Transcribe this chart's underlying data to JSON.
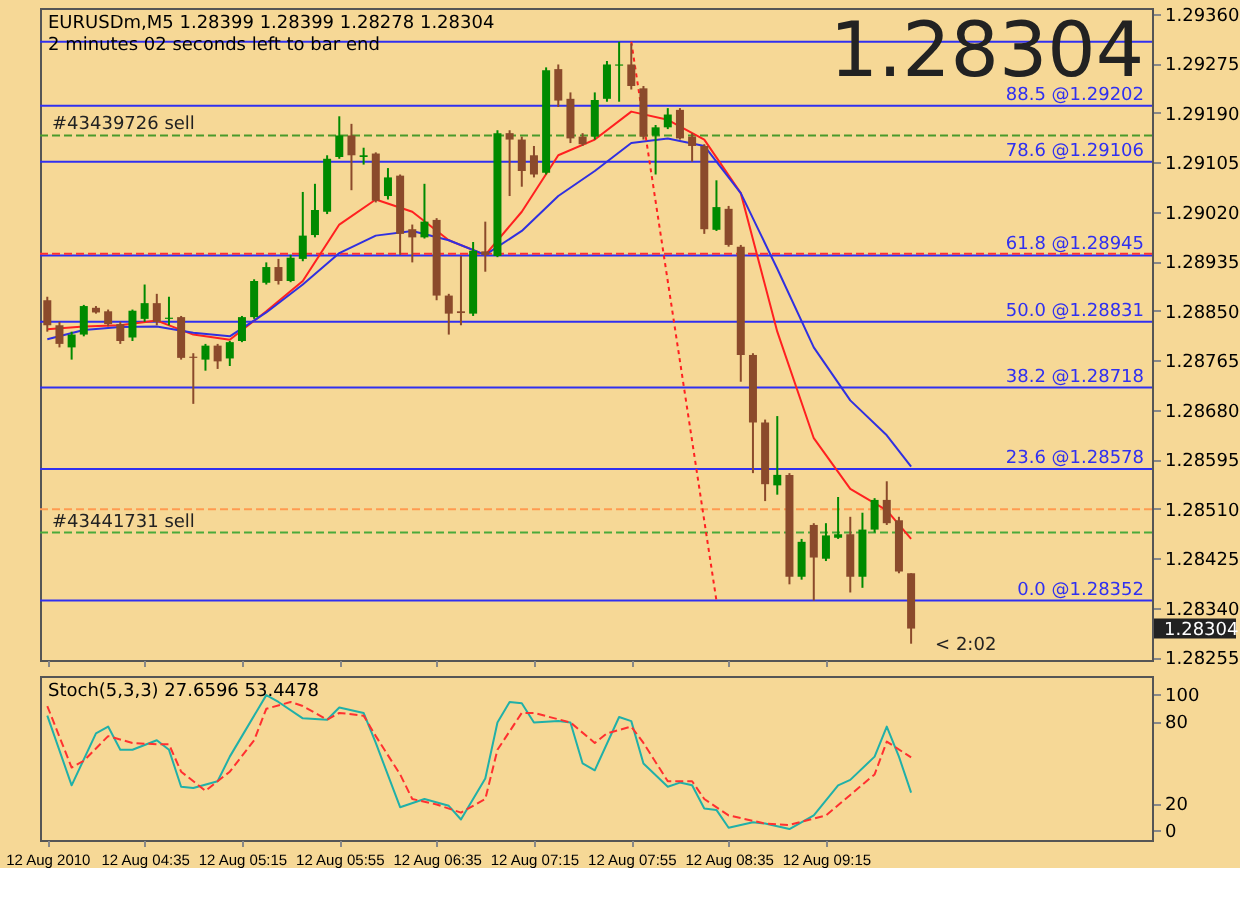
{
  "chart_data": [
    {
      "type": "candlestick",
      "title": "EURUSDm,M5  1.28399 1.28399 1.28278 1.28304",
      "subtitle": "2 minutes 02 seconds left to bar end",
      "x": [
        "2010-08-12T03:55",
        "2010-08-12T04:00",
        "2010-08-12T04:05",
        "2010-08-12T04:10",
        "2010-08-12T04:15",
        "2010-08-12T04:20",
        "2010-08-12T04:25",
        "2010-08-12T04:30",
        "2010-08-12T04:35",
        "2010-08-12T04:40",
        "2010-08-12T04:45",
        "2010-08-12T04:50",
        "2010-08-12T04:55",
        "2010-08-12T05:00",
        "2010-08-12T05:05",
        "2010-08-12T05:10",
        "2010-08-12T05:15",
        "2010-08-12T05:20",
        "2010-08-12T05:25",
        "2010-08-12T05:30",
        "2010-08-12T05:35",
        "2010-08-12T05:40",
        "2010-08-12T05:45",
        "2010-08-12T05:50",
        "2010-08-12T05:55",
        "2010-08-12T06:00",
        "2010-08-12T06:05",
        "2010-08-12T06:10",
        "2010-08-12T06:15",
        "2010-08-12T06:20",
        "2010-08-12T06:25",
        "2010-08-12T06:30",
        "2010-08-12T06:35",
        "2010-08-12T06:40",
        "2010-08-12T06:45",
        "2010-08-12T06:50",
        "2010-08-12T06:55",
        "2010-08-12T07:00",
        "2010-08-12T07:05",
        "2010-08-12T07:10",
        "2010-08-12T07:15",
        "2010-08-12T07:20",
        "2010-08-12T07:25",
        "2010-08-12T07:30",
        "2010-08-12T07:35",
        "2010-08-12T07:40",
        "2010-08-12T07:45",
        "2010-08-12T07:50",
        "2010-08-12T07:55",
        "2010-08-12T08:00",
        "2010-08-12T08:05",
        "2010-08-12T08:10",
        "2010-08-12T08:15",
        "2010-08-12T08:20",
        "2010-08-12T08:25",
        "2010-08-12T08:30",
        "2010-08-12T08:35",
        "2010-08-12T08:40",
        "2010-08-12T08:45",
        "2010-08-12T08:50",
        "2010-08-12T08:55",
        "2010-08-12T09:00",
        "2010-08-12T09:05",
        "2010-08-12T09:10",
        "2010-08-12T09:15",
        "2010-08-12T09:20",
        "2010-08-12T09:25",
        "2010-08-12T09:30",
        "2010-08-12T09:35",
        "2010-08-12T09:40",
        "2010-08-12T09:45",
        "2010-08-12T09:50"
      ],
      "ohlc": [
        [
          1.28868,
          1.28874,
          1.28814,
          1.28825
        ],
        [
          1.28825,
          1.28831,
          1.28787,
          1.28793
        ],
        [
          1.28787,
          1.28814,
          1.28766,
          1.28809
        ],
        [
          1.28809,
          1.2886,
          1.28806,
          1.28858
        ],
        [
          1.28855,
          1.28858,
          1.28845,
          1.28847
        ],
        [
          1.28849,
          1.28852,
          1.28823,
          1.28827
        ],
        [
          1.28827,
          1.28831,
          1.28793,
          1.28798
        ],
        [
          1.28804,
          1.28852,
          1.28798,
          1.2885
        ],
        [
          1.28836,
          1.28895,
          1.28831,
          1.28863
        ],
        [
          1.28863,
          1.28879,
          1.28825,
          1.28831
        ],
        [
          1.28836,
          1.28874,
          1.28825,
          1.28838
        ],
        [
          1.28839,
          1.28841,
          1.28766,
          1.28769
        ],
        [
          1.28771,
          1.28777,
          1.2869,
          1.28769
        ],
        [
          1.28766,
          1.28793,
          1.28747,
          1.2879
        ],
        [
          1.2879,
          1.28793,
          1.2875,
          1.28763
        ],
        [
          1.28768,
          1.28798,
          1.28755,
          1.28796
        ],
        [
          1.28798,
          1.28841,
          1.28796,
          1.28839
        ],
        [
          1.28839,
          1.28904,
          1.28836,
          1.28901
        ],
        [
          1.28898,
          1.28933,
          1.28895,
          1.28925
        ],
        [
          1.28925,
          1.28939,
          1.28895,
          1.28901
        ],
        [
          1.28901,
          1.28946,
          1.28899,
          1.28941
        ],
        [
          1.28939,
          1.29054,
          1.28935,
          1.28979
        ],
        [
          1.2898,
          1.29068,
          1.28976,
          1.29023
        ],
        [
          1.2902,
          1.29117,
          1.29016,
          1.29111
        ],
        [
          1.29114,
          1.29184,
          1.29111,
          1.29151
        ],
        [
          1.29151,
          1.29171,
          1.29057,
          1.29117
        ],
        [
          1.29114,
          1.2913,
          1.29101,
          1.29117
        ],
        [
          1.2912,
          1.29122,
          1.29036,
          1.29039
        ],
        [
          1.29047,
          1.29095,
          1.29041,
          1.29079
        ],
        [
          1.29082,
          1.29084,
          1.28946,
          1.28982
        ],
        [
          1.2899,
          1.28998,
          1.28933,
          1.28976
        ],
        [
          1.28976,
          1.29068,
          1.28974,
          1.29003
        ],
        [
          1.29006,
          1.29009,
          1.28868,
          1.28876
        ],
        [
          1.28876,
          1.28879,
          1.28809,
          1.28845
        ],
        [
          1.28849,
          1.28944,
          1.28825,
          1.28846
        ],
        [
          1.28845,
          1.28968,
          1.28841,
          1.28953
        ],
        [
          1.28952,
          1.29003,
          1.28917,
          1.28946
        ],
        [
          1.28944,
          1.2916,
          1.28942,
          1.29155
        ],
        [
          1.29155,
          1.2916,
          1.29047,
          1.29144
        ],
        [
          1.29144,
          1.29149,
          1.29063,
          1.2909
        ],
        [
          1.29117,
          1.29133,
          1.29079,
          1.29084
        ],
        [
          1.29087,
          1.29268,
          1.29084,
          1.29263
        ],
        [
          1.29265,
          1.29273,
          1.292,
          1.29211
        ],
        [
          1.29214,
          1.29225,
          1.29138,
          1.29146
        ],
        [
          1.29149,
          1.29155,
          1.29133,
          1.29136
        ],
        [
          1.29149,
          1.29225,
          1.29144,
          1.29212
        ],
        [
          1.29214,
          1.29279,
          1.29209,
          1.29273
        ],
        [
          1.29271,
          1.29312,
          1.29209,
          1.29273
        ],
        [
          1.29273,
          1.29309,
          1.2923,
          1.29236
        ],
        [
          1.29232,
          1.29236,
          1.29144,
          1.29149
        ],
        [
          1.29151,
          1.29169,
          1.29084,
          1.29165
        ],
        [
          1.29165,
          1.29198,
          1.29162,
          1.29187
        ],
        [
          1.29195,
          1.29198,
          1.29144,
          1.29146
        ],
        [
          1.29149,
          1.29155,
          1.29106,
          1.29133
        ],
        [
          1.29133,
          1.29136,
          1.28982,
          1.2899
        ],
        [
          1.28989,
          1.29074,
          1.28987,
          1.29028
        ],
        [
          1.29025,
          1.2903,
          1.2896,
          1.28963
        ],
        [
          1.2896,
          1.28963,
          1.28728,
          1.28774
        ],
        [
          1.28774,
          1.28777,
          1.28571,
          1.28658
        ],
        [
          1.28658,
          1.28663,
          1.28523,
          1.28552
        ],
        [
          1.2855,
          1.28669,
          1.28534,
          1.28568
        ],
        [
          1.28568,
          1.28571,
          1.2838,
          1.28393
        ],
        [
          1.28393,
          1.28458,
          1.28388,
          1.28453
        ],
        [
          1.28482,
          1.28485,
          1.28352,
          1.28426
        ],
        [
          1.28424,
          1.28485,
          1.2842,
          1.28464
        ],
        [
          1.2846,
          1.2853,
          1.28458,
          1.28466
        ],
        [
          1.28466,
          1.28496,
          1.28366,
          1.28393
        ],
        [
          1.28393,
          1.28503,
          1.28374,
          1.28474
        ],
        [
          1.28474,
          1.28528,
          1.28469,
          1.28525
        ],
        [
          1.28525,
          1.28557,
          1.28482,
          1.28485
        ],
        [
          1.2849,
          1.28496,
          1.28399,
          1.28402
        ],
        [
          1.28399,
          1.28399,
          1.28278,
          1.28304
        ]
      ],
      "series": [
        {
          "type": "line",
          "color": "#ff2020",
          "x": [
            "2010-08-12T03:55",
            "2010-08-12T04:10",
            "2010-08-12T04:25",
            "2010-08-12T04:40",
            "2010-08-12T04:55",
            "2010-08-12T05:10",
            "2010-08-12T05:25",
            "2010-08-12T05:40",
            "2010-08-12T05:55",
            "2010-08-12T06:10",
            "2010-08-12T06:25",
            "2010-08-12T06:40",
            "2010-08-12T06:55",
            "2010-08-12T07:10",
            "2010-08-12T07:25",
            "2010-08-12T07:40",
            "2010-08-12T07:55",
            "2010-08-12T08:10",
            "2010-08-12T08:25",
            "2010-08-12T08:40",
            "2010-08-12T08:55",
            "2010-08-12T09:10",
            "2010-08-12T09:25",
            "2010-08-12T09:40",
            "2010-08-12T09:50"
          ],
          "values": [
            1.28818,
            1.28823,
            1.28825,
            1.28833,
            1.28809,
            1.288,
            1.28849,
            1.28901,
            1.28998,
            1.29041,
            1.2902,
            1.28971,
            1.28946,
            1.2902,
            1.29117,
            1.29144,
            1.29192,
            1.29178,
            1.29144,
            1.29052,
            1.28814,
            1.28631,
            1.28544,
            1.28507,
            1.28458
          ]
        },
        {
          "type": "line",
          "color": "#3030e0",
          "x": [
            "2010-08-12T03:55",
            "2010-08-12T04:10",
            "2010-08-12T04:25",
            "2010-08-12T04:40",
            "2010-08-12T04:55",
            "2010-08-12T05:10",
            "2010-08-12T05:25",
            "2010-08-12T05:40",
            "2010-08-12T05:55",
            "2010-08-12T06:10",
            "2010-08-12T06:25",
            "2010-08-12T06:40",
            "2010-08-12T06:55",
            "2010-08-12T07:10",
            "2010-08-12T07:25",
            "2010-08-12T07:40",
            "2010-08-12T07:55",
            "2010-08-12T08:10",
            "2010-08-12T08:25",
            "2010-08-12T08:40",
            "2010-08-12T08:55",
            "2010-08-12T09:10",
            "2010-08-12T09:25",
            "2010-08-12T09:40",
            "2010-08-12T09:50"
          ],
          "values": [
            1.28801,
            1.28817,
            1.28822,
            1.28823,
            1.28812,
            1.28806,
            1.28847,
            1.28895,
            1.28949,
            1.28979,
            1.28987,
            1.28971,
            1.28946,
            1.28987,
            1.29047,
            1.2909,
            1.29138,
            1.29146,
            1.29133,
            1.29052,
            1.28922,
            1.28787,
            1.28696,
            1.28636,
            1.28582
          ]
        },
        {
          "type": "line",
          "color": "#ff2020",
          "line_style": "dotted",
          "x": [
            "2010-08-12T07:55",
            "2010-08-12T08:30"
          ],
          "values": [
            1.29312,
            1.28352
          ]
        }
      ],
      "xlim": [
        "2010-08-12T03:52",
        "2010-08-12T11:29"
      ],
      "ylim": [
        1.2825,
        1.2937
      ],
      "yticks": [
        {
          "value": 1.2936,
          "label": "1.29360"
        },
        1.29275,
        {
          "value": 1.2919,
          "label": "1.29190"
        },
        1.29105,
        {
          "value": 1.2902,
          "label": "1.29020"
        },
        1.28935,
        {
          "value": 1.2885,
          "label": "1.28850"
        },
        1.28765,
        {
          "value": 1.2868,
          "label": "1.28680"
        },
        1.28595,
        {
          "value": 1.2851,
          "label": "1.28510"
        },
        1.28425,
        {
          "value": 1.2834,
          "label": "1.28340"
        },
        1.28255
      ],
      "xticks": [
        {
          "value": "2010-08-12T03:55",
          "label": null
        },
        {
          "value": "2010-08-12T04:35",
          "label": null
        },
        {
          "value": "2010-08-12T05:15",
          "label": null
        },
        {
          "value": "2010-08-12T05:55",
          "label": null
        },
        {
          "value": "2010-08-12T06:35",
          "label": null
        },
        {
          "value": "2010-08-12T07:15",
          "label": null
        },
        {
          "value": "2010-08-12T07:55",
          "label": null
        },
        {
          "value": "2010-08-12T08:35",
          "label": null
        },
        {
          "value": "2010-08-12T09:15",
          "label": null
        }
      ],
      "tick_labels": "y",
      "ref_lines": [
        {
          "axis": "y",
          "value": 1.29312,
          "label": null,
          "color": "#3030f0"
        },
        {
          "axis": "y",
          "value": 1.29202,
          "label": "88.5 @1.29202",
          "color": "#3030f0"
        },
        {
          "axis": "y",
          "value": 1.29106,
          "label": "78.6 @1.29106",
          "color": "#3030f0"
        },
        {
          "axis": "y",
          "value": 1.28945,
          "label": "61.8 @1.28945",
          "color": "#3030f0"
        },
        {
          "axis": "y",
          "value": 1.28831,
          "label": "50.0 @1.28831",
          "color": "#3030f0"
        },
        {
          "axis": "y",
          "value": 1.28718,
          "label": "38.2 @1.28718",
          "color": "#3030f0"
        },
        {
          "axis": "y",
          "value": 1.28578,
          "label": "23.6 @1.28578",
          "color": "#3030f0"
        },
        {
          "axis": "y",
          "value": 1.28352,
          "label": "0.0 @1.28352",
          "color": "#3030f0"
        },
        {
          "axis": "y",
          "value": 1.29151,
          "label": "#43439726 sell",
          "color": "#4a9a2a",
          "line_style": "dashed"
        },
        {
          "axis": "y",
          "value": 1.28948,
          "label": null,
          "color": "#ff3030",
          "line_style": "dashed"
        },
        {
          "axis": "y",
          "value": 1.28509,
          "label": null,
          "color": "#ff9a50",
          "line_style": "dashed"
        },
        {
          "axis": "y",
          "value": 1.28469,
          "label": "#43441731 sell",
          "color": "#4aaa3a",
          "line_style": "dashed"
        }
      ],
      "annotations": [
        "1.28304",
        "< 2:02",
        "1.28304"
      ],
      "grid": false
    },
    {
      "type": "line",
      "title": "Stoch(5,3,3) 27.6596 53.4478",
      "series": [
        {
          "color": "#20b0a8",
          "x": [
            "2010-08-12T03:55",
            "2010-08-12T04:05",
            "2010-08-12T04:15",
            "2010-08-12T04:20",
            "2010-08-12T04:25",
            "2010-08-12T04:30",
            "2010-08-12T04:40",
            "2010-08-12T04:45",
            "2010-08-12T04:50",
            "2010-08-12T04:55",
            "2010-08-12T05:05",
            "2010-08-12T05:10",
            "2010-08-12T05:15",
            "2010-08-12T05:25",
            "2010-08-12T05:30",
            "2010-08-12T05:40",
            "2010-08-12T05:50",
            "2010-08-12T05:55",
            "2010-08-12T06:05",
            "2010-08-12T06:10",
            "2010-08-12T06:20",
            "2010-08-12T06:30",
            "2010-08-12T06:40",
            "2010-08-12T06:45",
            "2010-08-12T06:55",
            "2010-08-12T07:00",
            "2010-08-12T07:05",
            "2010-08-12T07:10",
            "2010-08-12T07:15",
            "2010-08-12T07:25",
            "2010-08-12T07:30",
            "2010-08-12T07:35",
            "2010-08-12T07:40",
            "2010-08-12T07:50",
            "2010-08-12T07:55",
            "2010-08-12T08:00",
            "2010-08-12T08:10",
            "2010-08-12T08:15",
            "2010-08-12T08:20",
            "2010-08-12T08:25",
            "2010-08-12T08:30",
            "2010-08-12T08:35",
            "2010-08-12T08:45",
            "2010-08-12T08:50",
            "2010-08-12T09:00",
            "2010-08-12T09:10",
            "2010-08-12T09:20",
            "2010-08-12T09:25",
            "2010-08-12T09:35",
            "2010-08-12T09:40",
            "2010-08-12T09:45",
            "2010-08-12T09:50"
          ],
          "values": [
            84,
            33,
            71,
            76,
            59,
            59,
            66,
            59,
            32,
            31,
            36,
            54,
            69,
            99,
            94,
            82,
            81,
            90,
            86,
            64,
            17,
            23,
            18,
            8,
            38,
            79,
            94,
            93,
            79,
            80,
            79,
            49,
            44,
            83,
            80,
            49,
            32,
            35,
            33,
            16,
            15,
            2,
            6,
            5,
            1,
            11,
            33,
            37,
            54,
            76,
            54,
            27.6596
          ]
        },
        {
          "color": "#ff3030",
          "line_style": "dashed",
          "x": [
            "2010-08-12T03:55",
            "2010-08-12T04:05",
            "2010-08-12T04:10",
            "2010-08-12T04:20",
            "2010-08-12T04:30",
            "2010-08-12T04:40",
            "2010-08-12T04:45",
            "2010-08-12T04:50",
            "2010-08-12T05:00",
            "2010-08-12T05:10",
            "2010-08-12T05:20",
            "2010-08-12T05:25",
            "2010-08-12T05:35",
            "2010-08-12T05:40",
            "2010-08-12T05:50",
            "2010-08-12T05:55",
            "2010-08-12T06:05",
            "2010-08-12T06:10",
            "2010-08-12T06:20",
            "2010-08-12T06:25",
            "2010-08-12T06:35",
            "2010-08-12T06:45",
            "2010-08-12T06:55",
            "2010-08-12T07:00",
            "2010-08-12T07:10",
            "2010-08-12T07:15",
            "2010-08-12T07:30",
            "2010-08-12T07:40",
            "2010-08-12T07:45",
            "2010-08-12T07:55",
            "2010-08-12T08:00",
            "2010-08-12T08:10",
            "2010-08-12T08:20",
            "2010-08-12T08:25",
            "2010-08-12T08:35",
            "2010-08-12T08:50",
            "2010-08-12T09:00",
            "2010-08-12T09:15",
            "2010-08-12T09:25",
            "2010-08-12T09:35",
            "2010-08-12T09:40",
            "2010-08-12T09:50"
          ],
          "values": [
            91,
            46,
            51,
            69,
            64,
            63,
            63,
            43,
            29,
            43,
            66,
            89,
            94,
            91,
            81,
            86,
            84,
            69,
            41,
            23,
            19,
            13,
            23,
            59,
            86,
            86,
            79,
            64,
            71,
            76,
            64,
            36,
            36,
            23,
            11,
            5,
            4,
            11,
            26,
            41,
            65,
            53.4478
          ]
        }
      ],
      "xlim": [
        "2010-08-12T03:52",
        "2010-08-12T11:29"
      ],
      "ylim": [
        -7,
        113
      ],
      "yticks": [
        0,
        20,
        80,
        100
      ],
      "xticks": [
        {
          "value": "2010-08-12T03:55",
          "label": "12 Aug 2010"
        },
        {
          "value": "2010-08-12T04:35",
          "label": "12 Aug 04:35"
        },
        {
          "value": "2010-08-12T05:15",
          "label": "12 Aug 05:15"
        },
        {
          "value": "2010-08-12T05:55",
          "label": "12 Aug 05:55"
        },
        {
          "value": "2010-08-12T06:35",
          "label": "12 Aug 06:35"
        },
        {
          "value": "2010-08-12T07:15",
          "label": "12 Aug 07:15"
        },
        {
          "value": "2010-08-12T07:55",
          "label": "12 Aug 07:55"
        },
        {
          "value": "2010-08-12T08:35",
          "label": "12 Aug 08:35"
        },
        {
          "value": "2010-08-12T09:15",
          "label": "12 Aug 09:15"
        }
      ],
      "grid": false
    }
  ]
}
